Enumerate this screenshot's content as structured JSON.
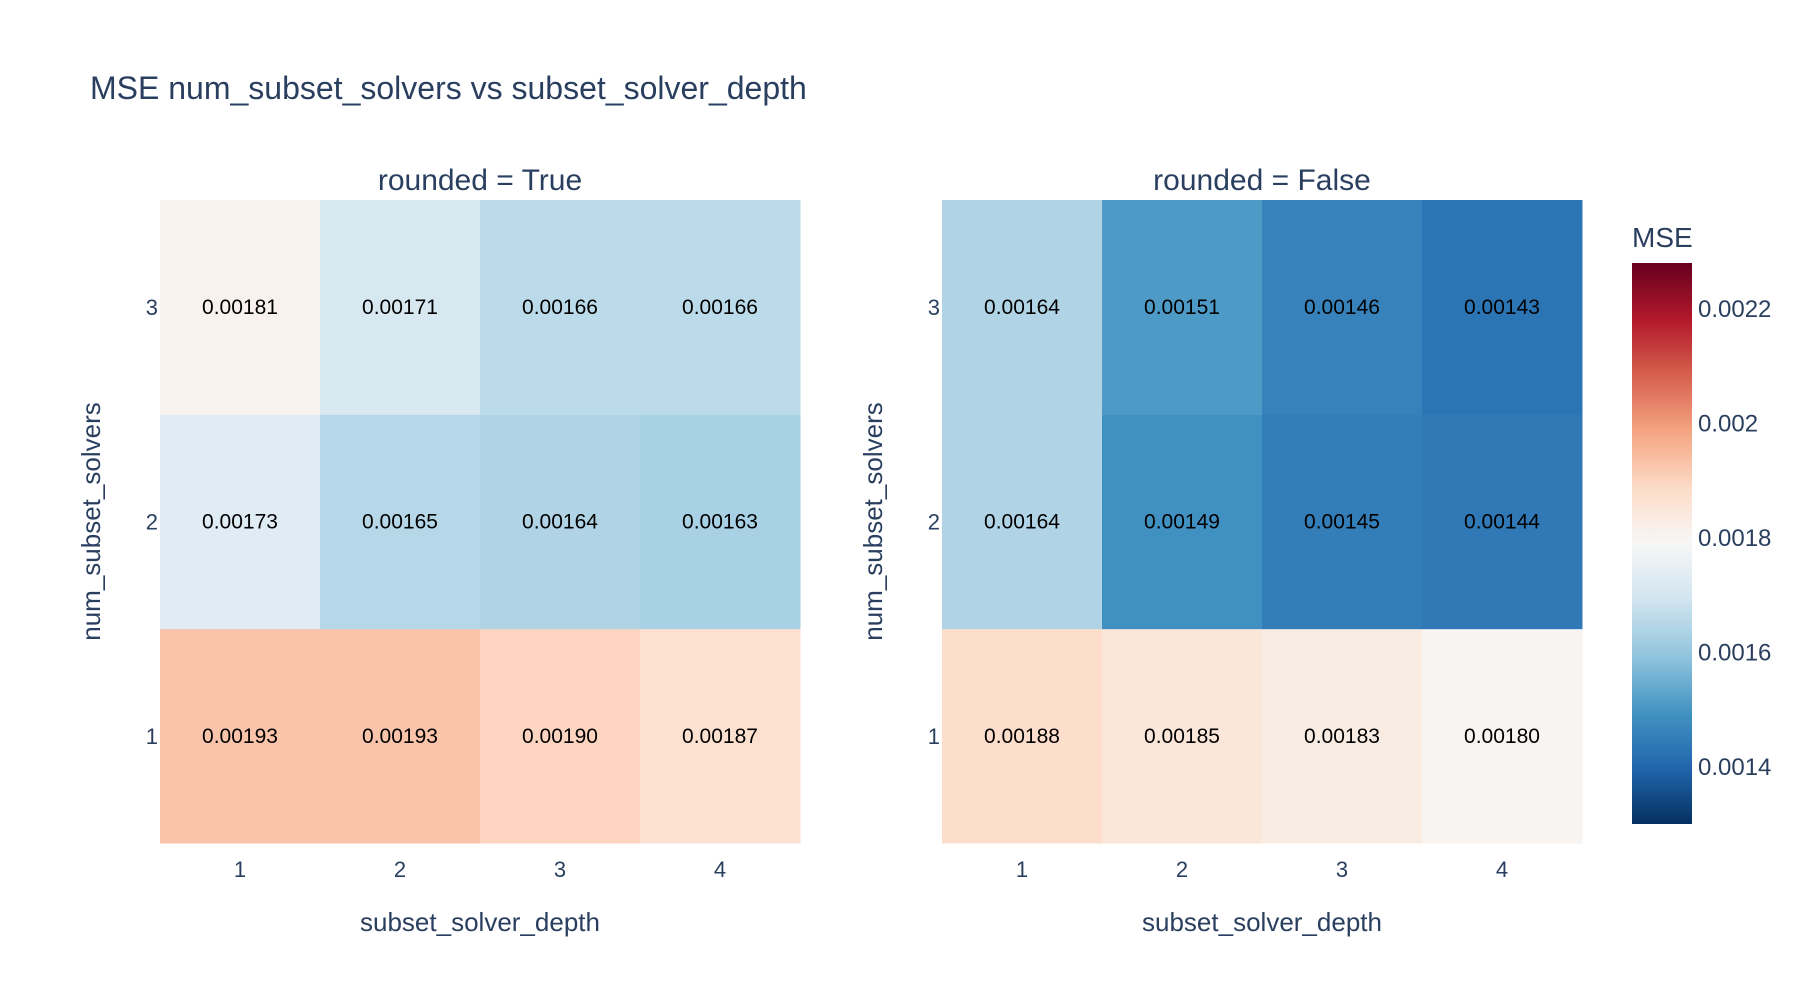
{
  "chart_data": {
    "type": "heatmap",
    "title": "MSE num_subset_solvers vs subset_solver_depth",
    "x": [
      1,
      2,
      3,
      4
    ],
    "y": [
      1,
      2,
      3
    ],
    "x_tick_labels": [
      "1",
      "2",
      "3",
      "4"
    ],
    "y_tick_labels": [
      "1",
      "2",
      "3"
    ],
    "xlabel": "subset_solver_depth",
    "ylabel": "num_subset_solvers",
    "colorscale": "RdBu reversed",
    "colorscale_stops": [
      "#053061",
      "#2166ac",
      "#4393c3",
      "#92c5de",
      "#d1e5f0",
      "#f7f7f7",
      "#fddbc7",
      "#f4a582",
      "#d6604d",
      "#b2182b",
      "#67001f"
    ],
    "zrange": [
      0.0013,
      0.00228
    ],
    "colorbar": {
      "title": "MSE",
      "tick_values": [
        0.0014,
        0.0016,
        0.0018,
        0.002,
        0.0022
      ],
      "tick_labels": [
        "0.0014",
        "0.0016",
        "0.0018",
        "0.002",
        "0.0022"
      ]
    },
    "panels": [
      {
        "title": "rounded = True",
        "z": [
          [
            0.00193,
            0.00193,
            0.0019,
            0.00187
          ],
          [
            0.00173,
            0.00165,
            0.00164,
            0.00163
          ],
          [
            0.00181,
            0.00171,
            0.00166,
            0.00166
          ]
        ],
        "text": [
          [
            "0.00193",
            "0.00193",
            "0.00190",
            "0.00187"
          ],
          [
            "0.00173",
            "0.00165",
            "0.00164",
            "0.00163"
          ],
          [
            "0.00181",
            "0.00171",
            "0.00166",
            "0.00166"
          ]
        ]
      },
      {
        "title": "rounded = False",
        "z": [
          [
            0.00188,
            0.00185,
            0.00183,
            0.0018
          ],
          [
            0.00164,
            0.00149,
            0.00145,
            0.00144
          ],
          [
            0.00164,
            0.00151,
            0.00146,
            0.00143
          ]
        ],
        "text": [
          [
            "0.00188",
            "0.00185",
            "0.00183",
            "0.00180"
          ],
          [
            "0.00164",
            "0.00149",
            "0.00145",
            "0.00144"
          ],
          [
            "0.00164",
            "0.00151",
            "0.00146",
            "0.00143"
          ]
        ]
      }
    ]
  }
}
